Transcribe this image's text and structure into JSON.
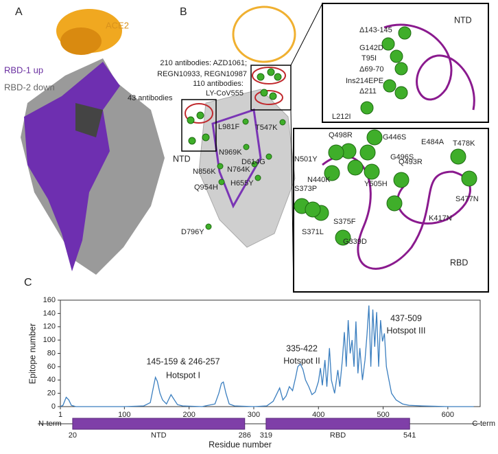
{
  "panels": {
    "a": {
      "letter": "A",
      "ace2": "ACE2",
      "rbd_up": "RBD-1 up",
      "rbd_down": "RBD-2 down"
    },
    "b": {
      "letter": "B",
      "labels": [
        "210 antibodies: AZD1061;",
        "REGN10933, REGN10987",
        "110 antibodies:",
        "LY-CoV555",
        "43 antibodies",
        "NTD",
        "L981F",
        "T547K",
        "N969K",
        "D614G",
        "N856K",
        "N764K",
        "Q954H",
        "H655Y",
        "D796Y"
      ],
      "ntd_inset": [
        "NTD",
        "Δ143-145",
        "G142D",
        "T95I",
        "Δ69-70",
        "Ins214EPE",
        "Δ211",
        "L212I"
      ],
      "rbd_inset": [
        "Q498R",
        "G446S",
        "E484A",
        "T478K",
        "N501Y",
        "G496S",
        "Q493R",
        "N440K",
        "Y505H",
        "S373P",
        "S477N",
        "S375F",
        "K417N",
        "S371L",
        "G339D",
        "RBD"
      ]
    },
    "c": {
      "letter": "C"
    }
  },
  "chart_data": {
    "type": "line",
    "y_label": "Epitope number",
    "x_label": "Residue number",
    "color": "#3a7ebf",
    "xlim": [
      1,
      650
    ],
    "xticks": [
      1,
      100,
      200,
      300,
      400,
      500,
      600
    ],
    "ylim": [
      0,
      160
    ],
    "yticks": [
      0,
      20,
      40,
      60,
      80,
      100,
      120,
      140,
      160
    ],
    "x": [
      1,
      5,
      10,
      14,
      18,
      25,
      60,
      100,
      130,
      140,
      145,
      148,
      151,
      155,
      159,
      165,
      172,
      176,
      182,
      190,
      220,
      240,
      246,
      250,
      253,
      257,
      262,
      270,
      300,
      320,
      330,
      335,
      340,
      345,
      350,
      355,
      360,
      365,
      368,
      372,
      376,
      380,
      385,
      390,
      395,
      400,
      403,
      406,
      410,
      413,
      417,
      420,
      425,
      430,
      433,
      437,
      440,
      443,
      446,
      449,
      452,
      455,
      458,
      461,
      464,
      468,
      472,
      475,
      478,
      481,
      484,
      487,
      490,
      493,
      496,
      499,
      502,
      505,
      509,
      513,
      520,
      530,
      540,
      560,
      600,
      640
    ],
    "values": [
      0,
      2,
      14,
      10,
      2,
      0,
      0,
      0,
      1,
      6,
      30,
      44,
      38,
      20,
      10,
      4,
      18,
      12,
      3,
      1,
      0,
      4,
      20,
      35,
      37,
      20,
      4,
      1,
      0,
      1,
      8,
      18,
      28,
      10,
      16,
      30,
      24,
      45,
      60,
      64,
      56,
      40,
      30,
      18,
      22,
      38,
      58,
      32,
      70,
      30,
      88,
      40,
      20,
      55,
      30,
      70,
      112,
      60,
      130,
      80,
      100,
      60,
      128,
      50,
      88,
      40,
      70,
      108,
      152,
      60,
      146,
      90,
      142,
      60,
      130,
      98,
      110,
      60,
      40,
      20,
      10,
      4,
      2,
      1,
      0,
      0
    ],
    "annotations": [
      "145-159 & 246-257",
      "Hotspot I",
      "335-422",
      "Hotspot II",
      "437-509",
      "Hotspot III"
    ],
    "n_term": "N-term",
    "c_term": "C-term",
    "domains": [
      {
        "name": "NTD",
        "start": 20,
        "end": 286
      },
      {
        "name": "RBD",
        "start": 319,
        "end": 541
      }
    ]
  }
}
